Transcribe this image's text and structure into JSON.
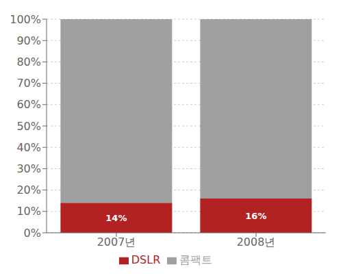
{
  "chart_data": {
    "type": "bar",
    "stacked": true,
    "categories": [
      "2007년",
      "2008년"
    ],
    "series": [
      {
        "name": "DSLR",
        "color": "#b22222",
        "values": [
          14,
          16
        ],
        "data_labels": true,
        "value_labels": [
          "14%",
          "16%"
        ]
      },
      {
        "name": "콤팩트",
        "color": "#a0a0a0",
        "values": [
          86,
          84
        ]
      }
    ],
    "ylim": [
      0,
      100
    ],
    "yticks": [
      {
        "value": 0,
        "label": "0%"
      },
      {
        "value": 10,
        "label": "10%"
      },
      {
        "value": 20,
        "label": "20%"
      },
      {
        "value": 30,
        "label": "30%"
      },
      {
        "value": 40,
        "label": "40%"
      },
      {
        "value": 50,
        "label": "50%"
      },
      {
        "value": 60,
        "label": "60%"
      },
      {
        "value": 70,
        "label": "70%"
      },
      {
        "value": 80,
        "label": "80%"
      },
      {
        "value": 90,
        "label": "90%"
      },
      {
        "value": 100,
        "label": "100%"
      }
    ],
    "grid": true,
    "legend": "bottom"
  }
}
